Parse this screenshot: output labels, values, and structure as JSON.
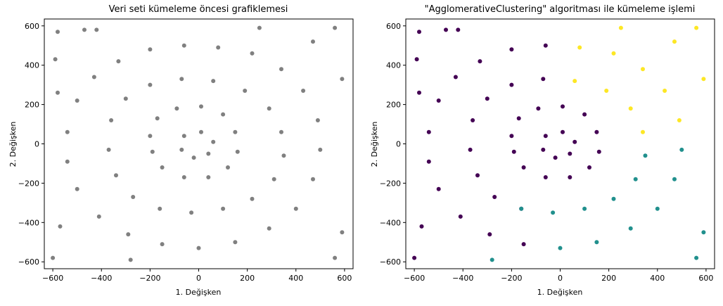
{
  "chart_data": [
    {
      "type": "scatter",
      "title": "Veri seti kümeleme öncesi grafiklemesi",
      "xlabel": "1. Değişken",
      "ylabel": "2. Değişken",
      "xlim": [
        -635,
        635
      ],
      "ylim": [
        -635,
        635
      ],
      "xticks": [
        "−600",
        "−400",
        "−200",
        "0",
        "200",
        "400",
        "600"
      ],
      "yticks": [
        "−600",
        "−400",
        "−200",
        "0",
        "200",
        "400",
        "600"
      ],
      "grid": false,
      "series": [
        {
          "color": "#808080",
          "points": [
            [
              -540,
              60
            ],
            [
              -500,
              220
            ],
            [
              -430,
              340
            ],
            [
              -330,
              420
            ],
            [
              -200,
              480
            ],
            [
              -60,
              500
            ],
            [
              80,
              490
            ],
            [
              220,
              460
            ],
            [
              340,
              380
            ],
            [
              430,
              270
            ],
            [
              490,
              120
            ],
            [
              500,
              -30
            ],
            [
              470,
              -180
            ],
            [
              400,
              -330
            ],
            [
              290,
              -430
            ],
            [
              150,
              -500
            ],
            [
              0,
              -530
            ],
            [
              -150,
              -510
            ],
            [
              -290,
              -460
            ],
            [
              -410,
              -370
            ],
            [
              -500,
              -230
            ],
            [
              -540,
              -90
            ],
            [
              -360,
              120
            ],
            [
              -300,
              230
            ],
            [
              -200,
              300
            ],
            [
              -70,
              330
            ],
            [
              60,
              320
            ],
            [
              190,
              270
            ],
            [
              290,
              180
            ],
            [
              340,
              60
            ],
            [
              350,
              -60
            ],
            [
              310,
              -180
            ],
            [
              220,
              -280
            ],
            [
              100,
              -330
            ],
            [
              -30,
              -350
            ],
            [
              -160,
              -330
            ],
            [
              -270,
              -270
            ],
            [
              -340,
              -160
            ],
            [
              -370,
              -30
            ],
            [
              -200,
              40
            ],
            [
              -170,
              130
            ],
            [
              -90,
              180
            ],
            [
              10,
              190
            ],
            [
              100,
              150
            ],
            [
              150,
              60
            ],
            [
              160,
              -40
            ],
            [
              120,
              -120
            ],
            [
              40,
              -170
            ],
            [
              -60,
              -170
            ],
            [
              -150,
              -120
            ],
            [
              -190,
              -40
            ],
            [
              -60,
              40
            ],
            [
              10,
              60
            ],
            [
              60,
              10
            ],
            [
              40,
              -50
            ],
            [
              -20,
              -70
            ],
            [
              -70,
              -30
            ],
            [
              -580,
              570
            ],
            [
              -590,
              430
            ],
            [
              -600,
              -580
            ],
            [
              560,
              -580
            ],
            [
              590,
              330
            ],
            [
              560,
              590
            ],
            [
              -580,
              260
            ],
            [
              470,
              520
            ],
            [
              -470,
              580
            ],
            [
              250,
              590
            ],
            [
              -280,
              -590
            ],
            [
              -570,
              -420
            ],
            [
              590,
              -450
            ],
            [
              -420,
              580
            ]
          ]
        }
      ]
    },
    {
      "type": "scatter",
      "title": "\"AgglomerativeClustering\" algoritması ile kümeleme işlemi",
      "xlabel": "1. Değişken",
      "ylabel": "2. Değişken",
      "xlim": [
        -635,
        635
      ],
      "ylim": [
        -635,
        635
      ],
      "xticks": [
        "−600",
        "−400",
        "−200",
        "0",
        "200",
        "400",
        "600"
      ],
      "yticks": [
        "−600",
        "−400",
        "−200",
        "0",
        "200",
        "400",
        "600"
      ],
      "grid": false,
      "series": [
        {
          "color": "#440154",
          "points": [
            [
              -540,
              60
            ],
            [
              -500,
              220
            ],
            [
              -430,
              340
            ],
            [
              -330,
              420
            ],
            [
              -200,
              480
            ],
            [
              -60,
              500
            ],
            [
              -150,
              -510
            ],
            [
              -290,
              -460
            ],
            [
              -410,
              -370
            ],
            [
              -500,
              -230
            ],
            [
              -540,
              -90
            ],
            [
              -360,
              120
            ],
            [
              -300,
              230
            ],
            [
              -200,
              300
            ],
            [
              -70,
              330
            ],
            [
              -160,
              -330
            ],
            [
              -270,
              -270
            ],
            [
              -340,
              -160
            ],
            [
              -370,
              -30
            ],
            [
              -200,
              40
            ],
            [
              -170,
              130
            ],
            [
              -90,
              180
            ],
            [
              10,
              190
            ],
            [
              100,
              150
            ],
            [
              150,
              60
            ],
            [
              160,
              -40
            ],
            [
              120,
              -120
            ],
            [
              40,
              -170
            ],
            [
              -60,
              -170
            ],
            [
              -150,
              -120
            ],
            [
              -190,
              -40
            ],
            [
              -60,
              40
            ],
            [
              10,
              60
            ],
            [
              60,
              10
            ],
            [
              40,
              -50
            ],
            [
              -20,
              -70
            ],
            [
              -70,
              -30
            ],
            [
              -580,
              570
            ],
            [
              -590,
              430
            ],
            [
              -600,
              -580
            ],
            [
              -580,
              260
            ],
            [
              -470,
              580
            ],
            [
              -570,
              -420
            ],
            [
              -420,
              580
            ]
          ]
        },
        {
          "color": "#21908d",
          "points": [
            [
              500,
              -30
            ],
            [
              470,
              -180
            ],
            [
              400,
              -330
            ],
            [
              290,
              -430
            ],
            [
              150,
              -500
            ],
            [
              0,
              -530
            ],
            [
              350,
              -60
            ],
            [
              310,
              -180
            ],
            [
              220,
              -280
            ],
            [
              100,
              -330
            ],
            [
              -30,
              -350
            ],
            [
              -160,
              -330
            ],
            [
              560,
              -580
            ],
            [
              590,
              -450
            ],
            [
              -280,
              -590
            ]
          ]
        },
        {
          "color": "#fde725",
          "points": [
            [
              80,
              490
            ],
            [
              220,
              460
            ],
            [
              340,
              380
            ],
            [
              430,
              270
            ],
            [
              490,
              120
            ],
            [
              60,
              320
            ],
            [
              190,
              270
            ],
            [
              290,
              180
            ],
            [
              340,
              60
            ],
            [
              590,
              330
            ],
            [
              560,
              590
            ],
            [
              470,
              520
            ],
            [
              250,
              590
            ]
          ]
        }
      ]
    }
  ]
}
